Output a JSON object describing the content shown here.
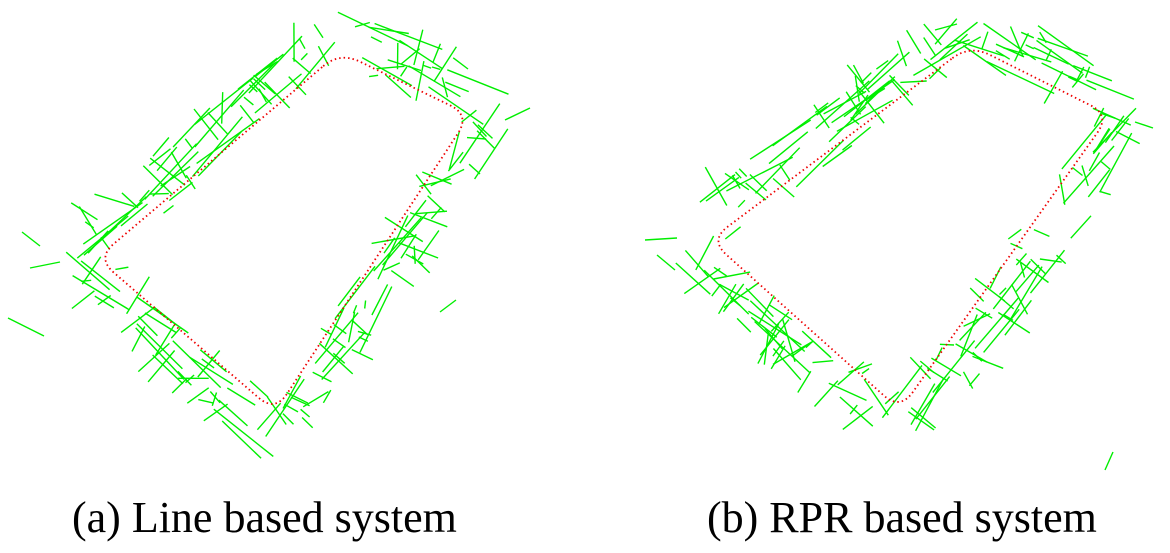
{
  "colors": {
    "landmark_lines": "#00ee00",
    "trajectory": "#ee0000",
    "background": "#ffffff",
    "caption_text": "#000000"
  },
  "figures": [
    {
      "id": "a",
      "caption": "(a) Line based system"
    },
    {
      "id": "b",
      "caption": "(b) RPR based system"
    }
  ]
}
